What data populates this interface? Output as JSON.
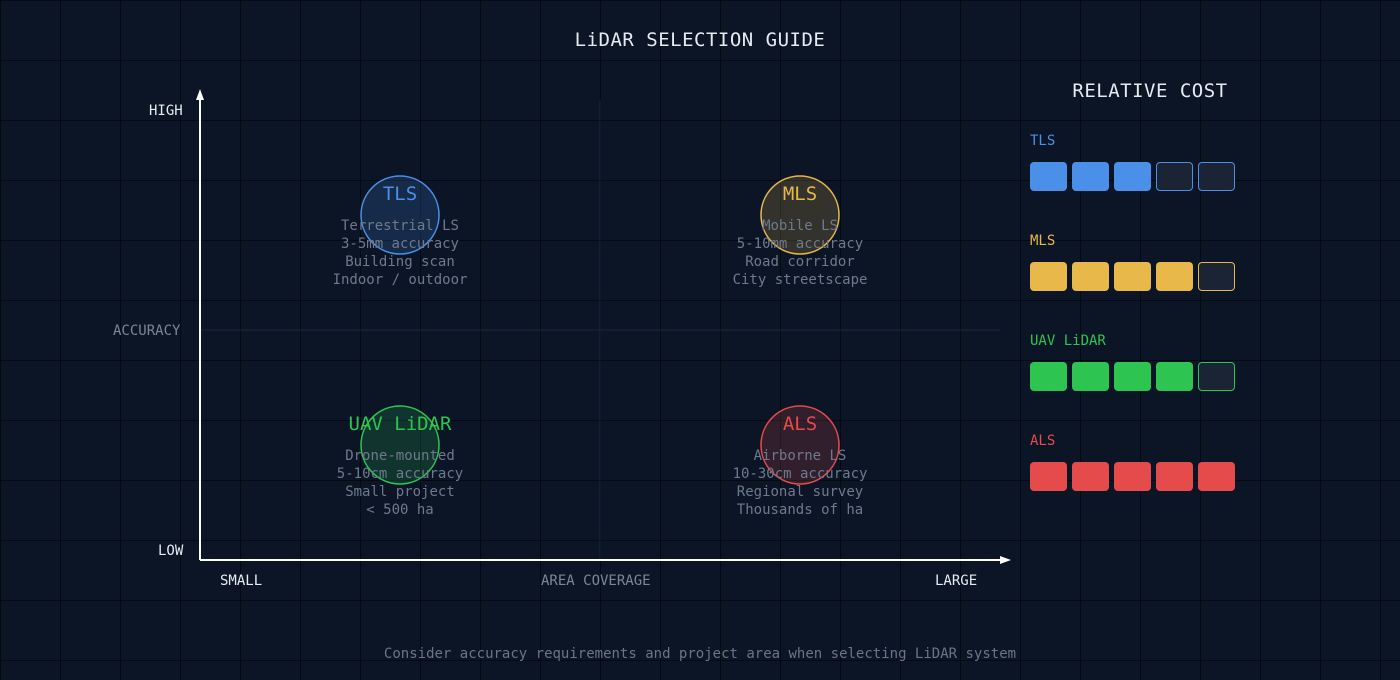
{
  "title": "LiDAR SELECTION GUIDE",
  "axes": {
    "y_high": "HIGH",
    "y_low": "LOW",
    "y_title": "ACCURACY",
    "x_small": "SMALL",
    "x_large": "LARGE",
    "x_title": "AREA COVERAGE"
  },
  "quadrants": {
    "tls": {
      "name": "TLS",
      "color": "#4a8fe8",
      "lines": [
        "Terrestrial LS",
        "3-5mm accuracy",
        "Building scan",
        "Indoor / outdoor"
      ]
    },
    "mls": {
      "name": "MLS",
      "color": "#e8b84a",
      "lines": [
        "Mobile LS",
        "5-10mm accuracy",
        "Road corridor",
        "City streetscape"
      ]
    },
    "uav": {
      "name": "UAV LiDAR",
      "color": "#2ec452",
      "lines": [
        "Drone-mounted",
        "5-10cm accuracy",
        "Small project",
        "< 500 ha"
      ]
    },
    "als": {
      "name": "ALS",
      "color": "#e54b4b",
      "lines": [
        "Airborne LS",
        "10-30cm accuracy",
        "Regional survey",
        "Thousands of ha"
      ]
    }
  },
  "cost": {
    "title": "RELATIVE COST",
    "max": 5,
    "items": [
      {
        "name": "TLS",
        "value": 3,
        "color": "#4a8fe8"
      },
      {
        "name": "MLS",
        "value": 4,
        "color": "#e8b84a"
      },
      {
        "name": "UAV LiDAR",
        "value": 4,
        "color": "#2ec452"
      },
      {
        "name": "ALS",
        "value": 5,
        "color": "#e54b4b"
      }
    ]
  },
  "footer": "Consider accuracy requirements and project area when selecting LiDAR system"
}
